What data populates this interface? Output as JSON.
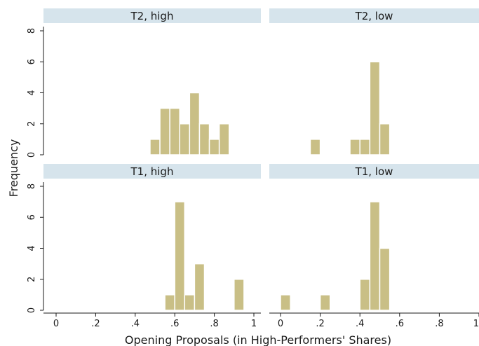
{
  "chart_data": {
    "type": "bar",
    "ylabel": "Frequency",
    "xlabel": "Opening Proposals (in High-Performers' Shares)",
    "x_ticks": [
      "0",
      ".2",
      ".4",
      ".6",
      ".8",
      "1"
    ],
    "y_ticks": [
      "0",
      "2",
      "4",
      "6",
      "8"
    ],
    "xlim": [
      0,
      1
    ],
    "ylim": [
      0,
      8
    ],
    "bin_width": 0.05,
    "colors": {
      "bar": "#c9bf86",
      "bar_edge": "#8c8560",
      "header": "#d6e4ec",
      "axis": "#1a1a1a"
    },
    "panels": [
      {
        "title": "T2, high",
        "bins": [
          {
            "x": 0.475,
            "count": 1
          },
          {
            "x": 0.525,
            "count": 3
          },
          {
            "x": 0.575,
            "count": 3
          },
          {
            "x": 0.625,
            "count": 2
          },
          {
            "x": 0.675,
            "count": 4
          },
          {
            "x": 0.725,
            "count": 2
          },
          {
            "x": 0.775,
            "count": 1
          },
          {
            "x": 0.825,
            "count": 2
          }
        ]
      },
      {
        "title": "T2, low",
        "bins": [
          {
            "x": 0.15,
            "count": 1
          },
          {
            "x": 0.35,
            "count": 1
          },
          {
            "x": 0.4,
            "count": 1
          },
          {
            "x": 0.45,
            "count": 6
          },
          {
            "x": 0.5,
            "count": 2
          }
        ]
      },
      {
        "title": "T1, high",
        "bins": [
          {
            "x": 0.55,
            "count": 1
          },
          {
            "x": 0.6,
            "count": 7
          },
          {
            "x": 0.65,
            "count": 1
          },
          {
            "x": 0.7,
            "count": 3
          },
          {
            "x": 0.9,
            "count": 2
          }
        ]
      },
      {
        "title": "T1, low",
        "bins": [
          {
            "x": 0.0,
            "count": 1
          },
          {
            "x": 0.2,
            "count": 1
          },
          {
            "x": 0.4,
            "count": 2
          },
          {
            "x": 0.45,
            "count": 7
          },
          {
            "x": 0.5,
            "count": 4
          }
        ]
      }
    ]
  }
}
